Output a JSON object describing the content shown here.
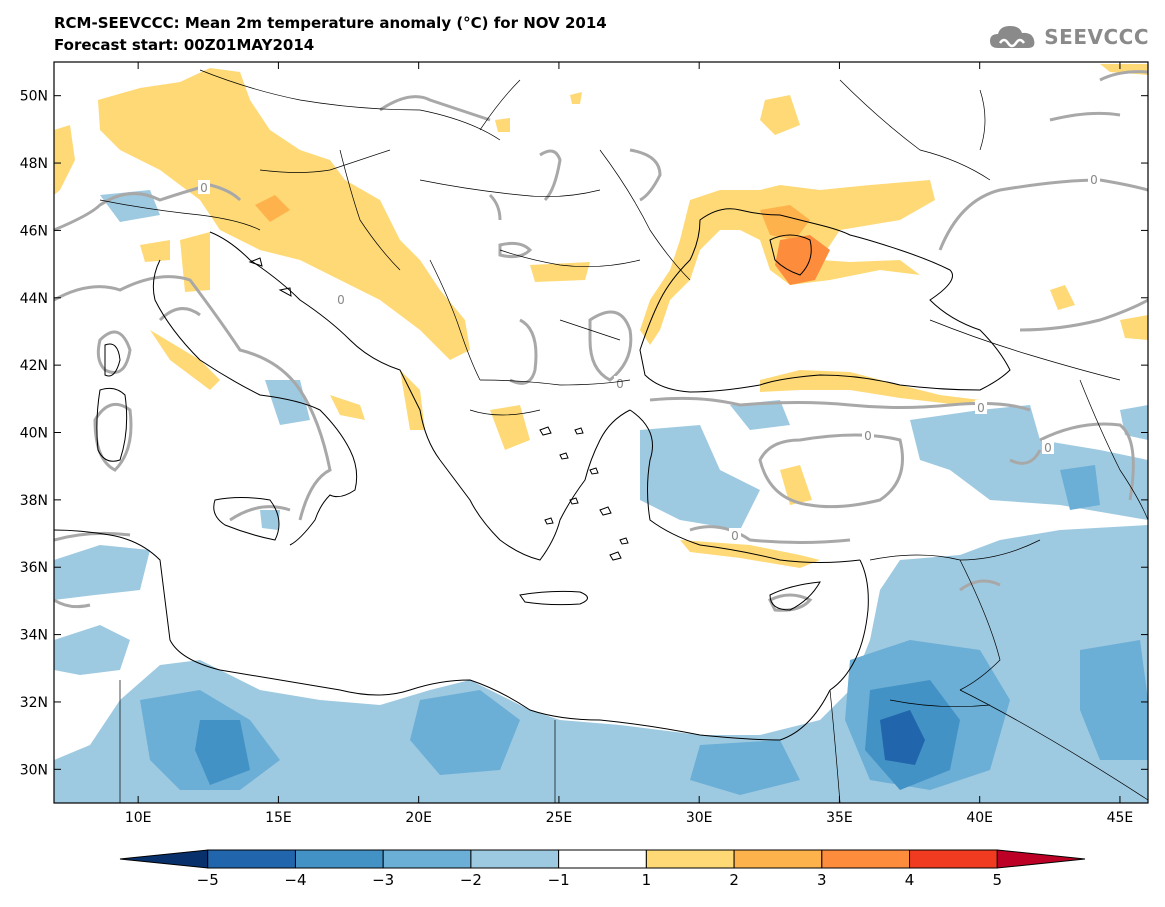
{
  "header": {
    "title_line1": "RCM-SEEVCCC: Mean 2m temperature anomaly (°C) for NOV 2014",
    "title_line2": "Forecast start: 00Z01MAY2014"
  },
  "logo": {
    "text": "SEEVCCC",
    "icon": "cloud-icon",
    "color": "#8a8a8a"
  },
  "map": {
    "lon_range": [
      7,
      46
    ],
    "lat_range": [
      29,
      51
    ],
    "lat_ticks": [
      {
        "value": 50,
        "label": "50N"
      },
      {
        "value": 48,
        "label": "48N"
      },
      {
        "value": 46,
        "label": "46N"
      },
      {
        "value": 44,
        "label": "44N"
      },
      {
        "value": 42,
        "label": "42N"
      },
      {
        "value": 40,
        "label": "40N"
      },
      {
        "value": 38,
        "label": "38N"
      },
      {
        "value": 36,
        "label": "36N"
      },
      {
        "value": 34,
        "label": "34N"
      },
      {
        "value": 32,
        "label": "32N"
      },
      {
        "value": 30,
        "label": "30N"
      }
    ],
    "lon_ticks": [
      {
        "value": 10,
        "label": "10E"
      },
      {
        "value": 15,
        "label": "15E"
      },
      {
        "value": 20,
        "label": "20E"
      },
      {
        "value": 25,
        "label": "25E"
      },
      {
        "value": 30,
        "label": "30E"
      },
      {
        "value": 35,
        "label": "35E"
      },
      {
        "value": 40,
        "label": "40E"
      },
      {
        "value": 45,
        "label": "45E"
      }
    ],
    "contour_label": "0"
  },
  "colorbar": {
    "labels": [
      "−5",
      "−4",
      "−3",
      "−2",
      "−1",
      "1",
      "2",
      "3",
      "4",
      "5"
    ],
    "colors": [
      "#08306b",
      "#2166ac",
      "#4292c6",
      "#6baed6",
      "#9ecae1",
      "#ffffff",
      "#fed976",
      "#feb24c",
      "#fd8d3c",
      "#f03b20",
      "#bd0026"
    ]
  }
}
